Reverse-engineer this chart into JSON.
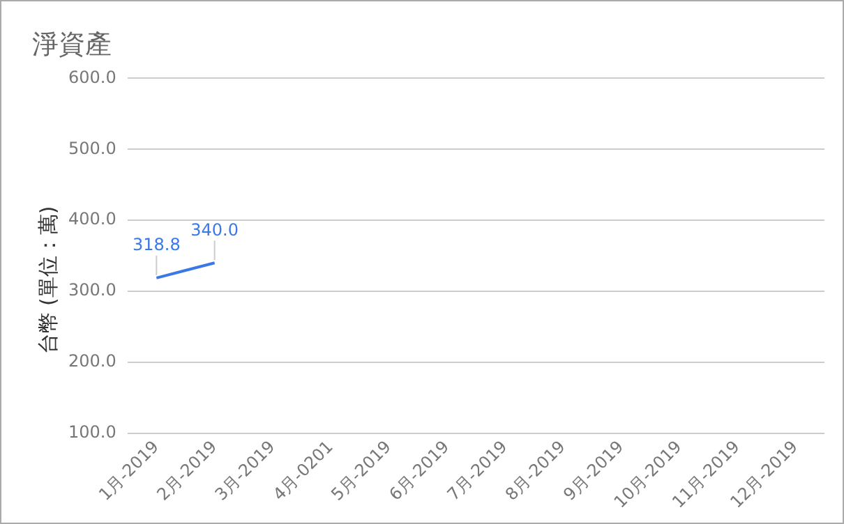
{
  "chart_data": {
    "type": "line",
    "title": "淨資產",
    "ylabel": "台幣 (單位：萬)",
    "categories": [
      "1月-2019",
      "2月-2019",
      "3月-2019",
      "4月-0201",
      "5月-2019",
      "6月-2019",
      "7月-2019",
      "8月-2019",
      "9月-2019",
      "10月-2019",
      "11月-2019",
      "12月-2019"
    ],
    "series": [
      {
        "color": "#3b78e7",
        "values": [
          318.8,
          340.0,
          null,
          null,
          null,
          null,
          null,
          null,
          null,
          null,
          null,
          null
        ],
        "value_labels": [
          "318.8",
          "340.0",
          null,
          null,
          null,
          null,
          null,
          null,
          null,
          null,
          null,
          null
        ]
      }
    ],
    "ylim": [
      100,
      600
    ],
    "yticks": [
      {
        "value": 100,
        "label": "100.0"
      },
      {
        "value": 200,
        "label": "200.0"
      },
      {
        "value": 300,
        "label": "300.0"
      },
      {
        "value": 400,
        "label": "400.0"
      },
      {
        "value": 500,
        "label": "500.0"
      },
      {
        "value": 600,
        "label": "600.0"
      }
    ],
    "grid": "y",
    "legend": false,
    "marker": "none",
    "line_style": "solid"
  }
}
